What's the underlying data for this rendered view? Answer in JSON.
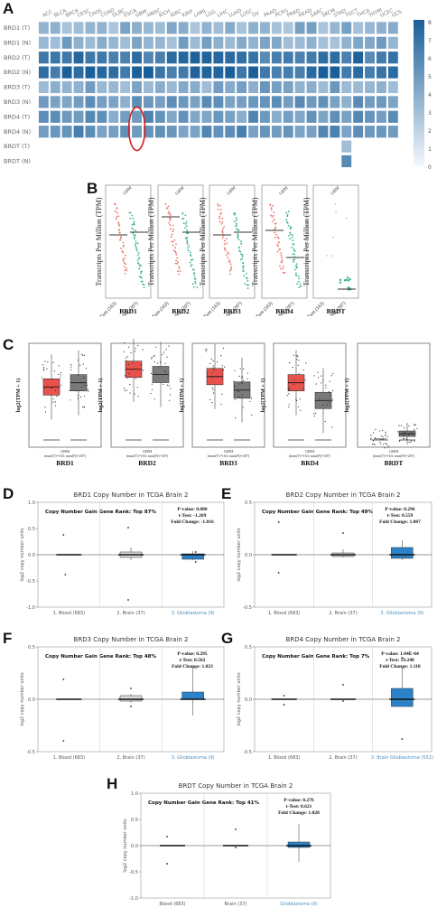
{
  "panels": {
    "A": "A",
    "B": "B",
    "C": "C",
    "D": "D",
    "E": "E",
    "F": "F",
    "G": "G",
    "H": "H"
  },
  "heatmap": {
    "cancers": [
      "ACC",
      "BLCA",
      "BRCA",
      "CESC",
      "CHOL",
      "COAD",
      "DLBC",
      "ESCA",
      "GBM",
      "HNSC",
      "KICH",
      "KIRC",
      "KIRP",
      "LAML",
      "LGG",
      "LIHC",
      "LUAD",
      "LUSC",
      "OV",
      "PAAD",
      "PCPG",
      "PRAD",
      "READ",
      "SARC",
      "SKCM",
      "STAD",
      "TGCT",
      "THCA",
      "THYM",
      "UCEC",
      "UCS"
    ],
    "rows": [
      "BRD1 (T)",
      "BRD1 (N)",
      "BRD2 (T)",
      "BRD2 (N)",
      "BRD3 (T)",
      "BRD3 (N)",
      "BRD4 (T)",
      "BRD4 (N)",
      "BRDT (T)",
      "BRDT (N)"
    ],
    "levels": [
      0.45,
      0.48,
      0.85,
      0.92,
      0.52,
      0.58,
      0.62,
      0.68,
      0.03,
      0.04
    ],
    "brdt_tgct": {
      "T": 0.38,
      "N": 0.72
    },
    "scale_ticks": [
      "8",
      "7",
      "6",
      "5",
      "4",
      "3",
      "2",
      "1",
      "0"
    ],
    "highlight": {
      "column": "GBM",
      "rows": [
        "BRD4 (T)",
        "BRD4 (N)"
      ]
    },
    "colors": {
      "low": "#f4f8fc",
      "high": "#1a5f99"
    }
  },
  "panel_b": {
    "genes": [
      "BRD1",
      "BRD2",
      "BRD3",
      "BRD4",
      "BRDT"
    ],
    "ylabel": "Transcripts Per Million (TPM)",
    "tag": "GBM",
    "x_tumor": "Tum (163)",
    "x_normal": "Nor (207)"
  },
  "panel_c": {
    "genes": [
      "BRD1",
      "BRD2",
      "BRD3",
      "BRD4",
      "BRDT"
    ],
    "ylabel": "log2(TPM + 1)",
    "xlabel": "GBM",
    "xsub": "(num(T)=163; num(N)=207)",
    "colors": {
      "tumor": "#e8524d",
      "normal": "#7a7a7a"
    }
  },
  "copy_number": [
    {
      "title": "BRD1 Copy Number in TCGA Brain 2",
      "rank": "Copy Number Gain Gene Rank: Top 87%",
      "pvalue": "P-value: 0.880",
      "ttest": "t-Test: -1.269",
      "fold": "Fold Change: -1.016",
      "yticks": [
        "1.0",
        "0.5",
        "0.0",
        "-0.5",
        "-1.0"
      ],
      "groups": [
        "1. Blood (683)",
        "2. Brain (37)",
        "3. Glioblastoma (9)"
      ]
    },
    {
      "title": "BRD2 Copy Number in TCGA Brain 2",
      "rank": "Copy Number Gain Gene Rank: Top 49%",
      "pvalue": "P-value: 0.296",
      "ttest": "t-Test: 0.559",
      "fold": "Fold Change: 1.007",
      "yticks": [
        "0.5",
        "0.0",
        "-0.5"
      ],
      "groups": [
        "1. Blood (683)",
        "2. Brain (37)",
        "3. Glioblastoma (9)"
      ]
    },
    {
      "title": "BRD3 Copy Number in TCGA Brain 2",
      "rank": "Copy Number Gain Gene Rank: Top 48%",
      "pvalue": "P-value: 0.295",
      "ttest": "t-Test: 0.562",
      "fold": "Fold Change: 1.023",
      "yticks": [
        "0.5",
        "0.0",
        "-0.5"
      ],
      "groups": [
        "1. Blood (683)",
        "2. Brain (37)",
        "3. Glioblastoma (9)"
      ]
    },
    {
      "title": "BRD4 Copy Number in TCGA Brain 2",
      "rank": "Copy Number Gain Gene Rank: Top 7%",
      "pvalue": "P-value: 1.04E-64",
      "ttest": "t-Test: 19.248",
      "fold": "Fold Change: 1.118",
      "yticks": [
        "0.5",
        "0.0",
        "-0.5"
      ],
      "groups": [
        "1. Blood (683)",
        "2. Brain (37)",
        "3. Brain Glioblastoma (552)"
      ]
    },
    {
      "title": "BRDT Copy Number in TCGA Brain 2",
      "rank": "Copy Number Gain Gene Rank: Top 41%",
      "pvalue": "P-value: 0.276",
      "ttest": "t-Test: 0.621",
      "fold": "Fold Change: 1.028",
      "yticks": [
        "1.0",
        "0.5",
        "0.0",
        "-0.5",
        "-1.0"
      ],
      "groups": [
        "Blood (683)",
        "Brain (37)",
        "Glioblastoma (9)"
      ]
    }
  ],
  "ylabel_cn": "log2 copy number units"
}
